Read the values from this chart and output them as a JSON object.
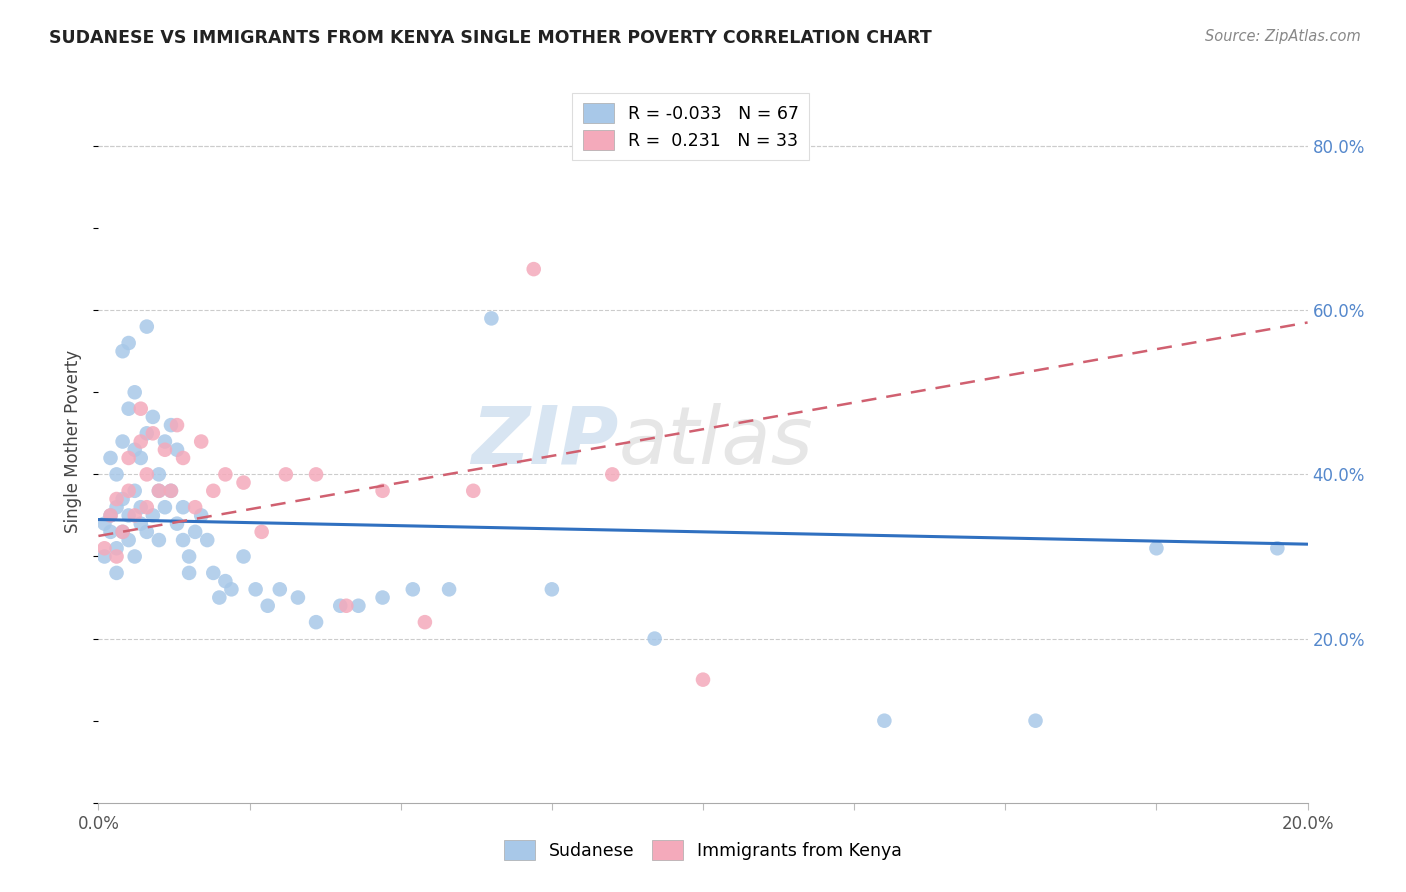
{
  "title": "SUDANESE VS IMMIGRANTS FROM KENYA SINGLE MOTHER POVERTY CORRELATION CHART",
  "source": "Source: ZipAtlas.com",
  "ylabel": "Single Mother Poverty",
  "ytick_labels": [
    "20.0%",
    "40.0%",
    "60.0%",
    "80.0%"
  ],
  "ytick_values": [
    0.2,
    0.4,
    0.6,
    0.8
  ],
  "xlim": [
    0.0,
    0.2
  ],
  "ylim": [
    0.0,
    0.88
  ],
  "legend_blue_label": "R = -0.033   N = 67",
  "legend_pink_label": "R =  0.231   N = 33",
  "blue_color": "#A8C8E8",
  "pink_color": "#F4AABB",
  "blue_line_color": "#3070C0",
  "pink_line_color": "#D06070",
  "watermark_zip": "ZIP",
  "watermark_atlas": "atlas",
  "blue_scatter_x": [
    0.001,
    0.001,
    0.002,
    0.002,
    0.002,
    0.003,
    0.003,
    0.003,
    0.003,
    0.004,
    0.004,
    0.004,
    0.004,
    0.005,
    0.005,
    0.005,
    0.005,
    0.006,
    0.006,
    0.006,
    0.006,
    0.007,
    0.007,
    0.007,
    0.008,
    0.008,
    0.008,
    0.009,
    0.009,
    0.01,
    0.01,
    0.01,
    0.011,
    0.011,
    0.012,
    0.012,
    0.013,
    0.013,
    0.014,
    0.014,
    0.015,
    0.015,
    0.016,
    0.017,
    0.018,
    0.019,
    0.02,
    0.021,
    0.022,
    0.024,
    0.026,
    0.028,
    0.03,
    0.033,
    0.036,
    0.04,
    0.043,
    0.047,
    0.052,
    0.058,
    0.065,
    0.075,
    0.092,
    0.13,
    0.155,
    0.175,
    0.195
  ],
  "blue_scatter_y": [
    0.34,
    0.3,
    0.33,
    0.35,
    0.42,
    0.31,
    0.36,
    0.4,
    0.28,
    0.33,
    0.37,
    0.44,
    0.55,
    0.32,
    0.35,
    0.48,
    0.56,
    0.3,
    0.38,
    0.43,
    0.5,
    0.36,
    0.42,
    0.34,
    0.33,
    0.45,
    0.58,
    0.35,
    0.47,
    0.4,
    0.38,
    0.32,
    0.44,
    0.36,
    0.46,
    0.38,
    0.43,
    0.34,
    0.36,
    0.32,
    0.3,
    0.28,
    0.33,
    0.35,
    0.32,
    0.28,
    0.25,
    0.27,
    0.26,
    0.3,
    0.26,
    0.24,
    0.26,
    0.25,
    0.22,
    0.24,
    0.24,
    0.25,
    0.26,
    0.26,
    0.59,
    0.26,
    0.2,
    0.1,
    0.1,
    0.31,
    0.31
  ],
  "pink_scatter_x": [
    0.001,
    0.002,
    0.003,
    0.003,
    0.004,
    0.005,
    0.005,
    0.006,
    0.007,
    0.007,
    0.008,
    0.008,
    0.009,
    0.01,
    0.011,
    0.012,
    0.013,
    0.014,
    0.016,
    0.017,
    0.019,
    0.021,
    0.024,
    0.027,
    0.031,
    0.036,
    0.041,
    0.047,
    0.054,
    0.062,
    0.072,
    0.085,
    0.1
  ],
  "pink_scatter_y": [
    0.31,
    0.35,
    0.3,
    0.37,
    0.33,
    0.38,
    0.42,
    0.35,
    0.44,
    0.48,
    0.36,
    0.4,
    0.45,
    0.38,
    0.43,
    0.38,
    0.46,
    0.42,
    0.36,
    0.44,
    0.38,
    0.4,
    0.39,
    0.33,
    0.4,
    0.4,
    0.24,
    0.38,
    0.22,
    0.38,
    0.65,
    0.4,
    0.15
  ],
  "blue_line_x0": 0.0,
  "blue_line_x1": 0.2,
  "blue_line_y0": 0.345,
  "blue_line_y1": 0.315,
  "pink_line_x0": 0.0,
  "pink_line_x1": 0.2,
  "pink_line_y0": 0.325,
  "pink_line_y1": 0.585
}
